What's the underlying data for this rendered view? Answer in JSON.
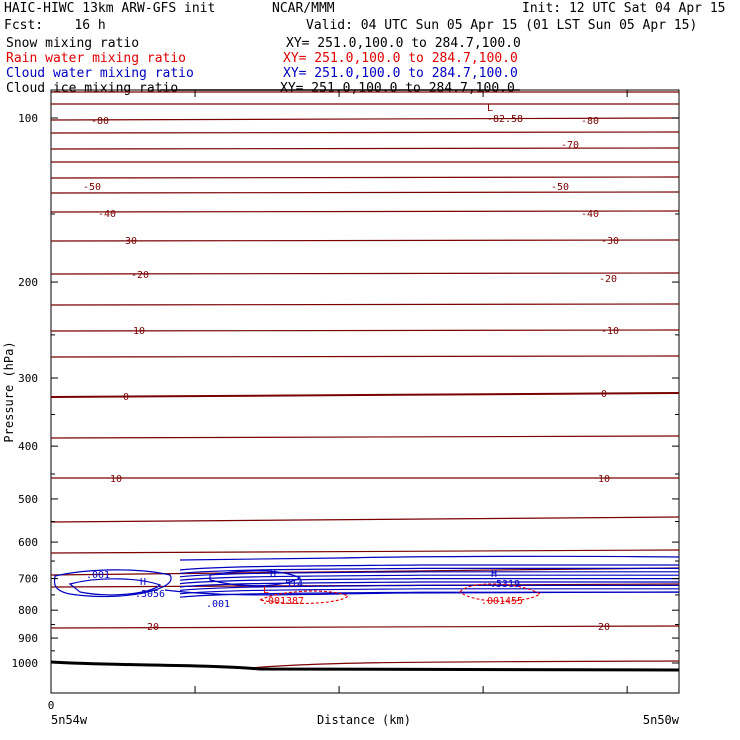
{
  "header": {
    "model": "HAIC-HIWC 13km ARW-GFS init",
    "org": "NCAR/MMM",
    "init": "Init: 12 UTC Sat 04 Apr 15",
    "fcst": "Fcst:    16 h",
    "valid": "Valid: 04 UTC Sun 05 Apr 15 (01 LST Sun 05 Apr 15)",
    "fields": [
      {
        "name": "Snow mixing ratio",
        "xy": "XY= 251.0,100.0 to 284.7,100.0",
        "color": "#000000"
      },
      {
        "name": "Rain water mixing ratio",
        "xy": "XY= 251.0,100.0 to 284.7,100.0",
        "color": "#e00000"
      },
      {
        "name": "Cloud water mixing ratio",
        "xy": "XY= 251.0,100.0 to 284.7,100.0",
        "color": "#0000c0"
      },
      {
        "name": "Cloud ice mixing ratio",
        "xy": "XY= 251.0,100.0 to 284.7,100.0",
        "color": "#000000"
      }
    ]
  },
  "chart_data": {
    "type": "cross-section-contour",
    "ylabel": "Pressure (hPa)",
    "xlabel": "Distance (km)",
    "y_scale": "log",
    "ylim": [
      1050,
      80
    ],
    "y_ticks": [
      100,
      200,
      300,
      400,
      500,
      600,
      700,
      800,
      900,
      1000
    ],
    "x_tick_label": "0",
    "x_end_labels": [
      "5n54w",
      "5n50w"
    ],
    "colors": {
      "temperature": "#7a0000",
      "cloud_water": "#0000c0",
      "rain_water": "#e00000",
      "snow": "#000000",
      "ground": "#000000"
    },
    "temperature_contour_labels": [
      "-80",
      "-82.58",
      "L",
      "-80",
      "-70",
      "-50",
      "-50",
      "-40",
      "-40",
      "-30",
      "-30",
      "-20",
      "-20",
      "-10",
      "-10",
      "0",
      "0",
      "10",
      "10",
      "20",
      "20"
    ],
    "cloud_water_labels": [
      ".001",
      "H",
      ".3056",
      "H",
      ".514",
      ".001",
      "H",
      ".5319"
    ],
    "rain_water_labels": [
      "L",
      ".001387",
      ".001455"
    ]
  }
}
